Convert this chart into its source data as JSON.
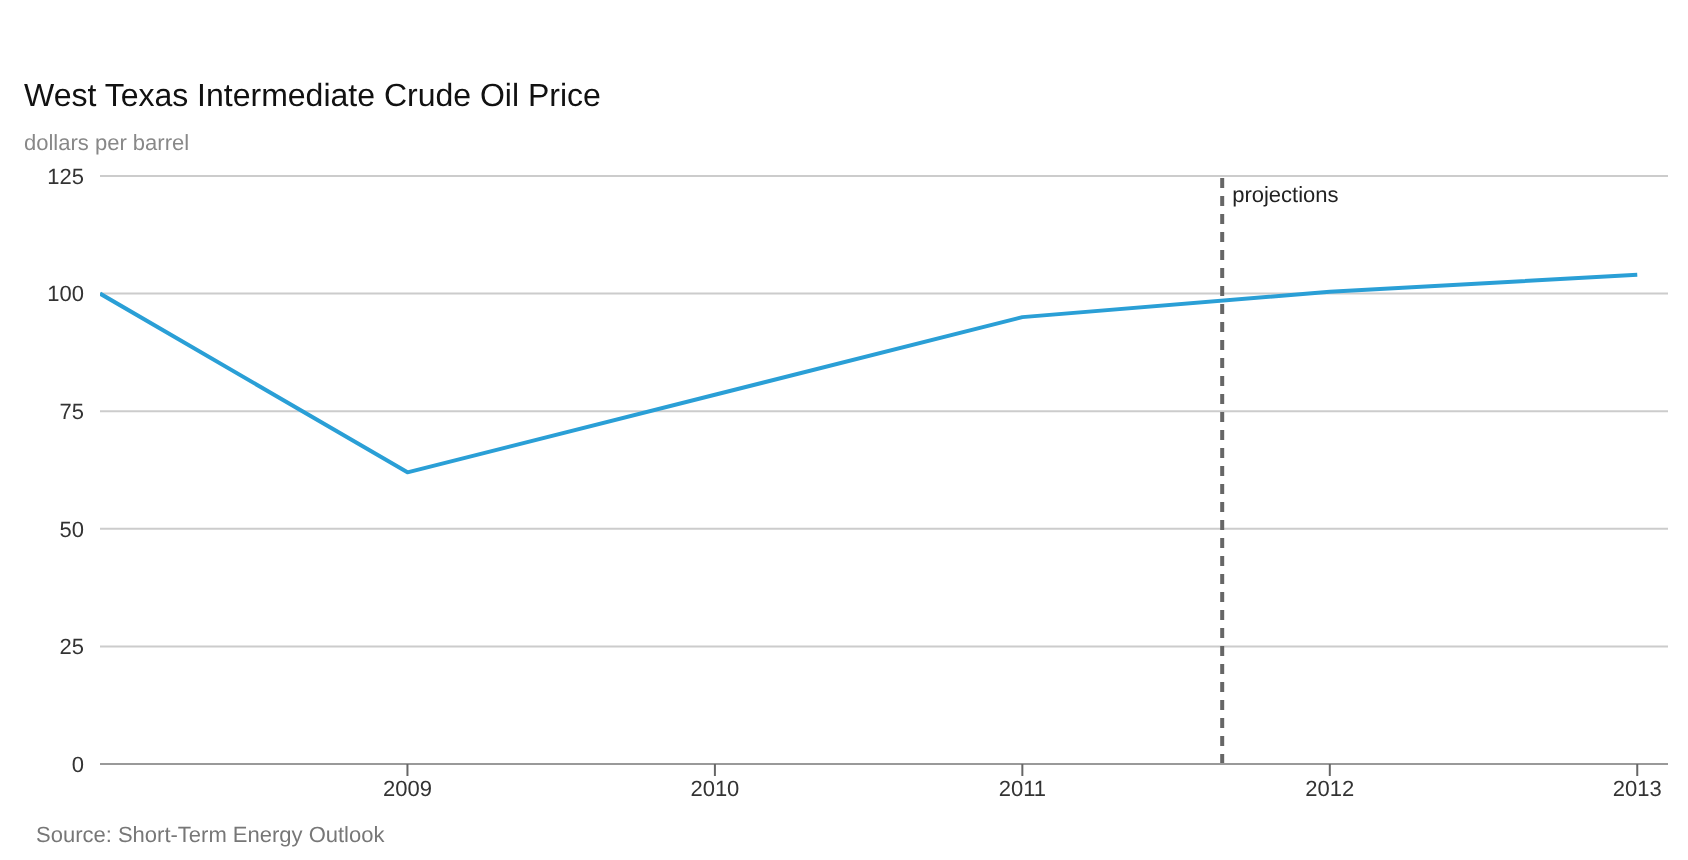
{
  "chart_data": {
    "type": "line",
    "title": "West Texas Intermediate Crude Oil Price",
    "ylabel": "dollars per barrel",
    "x": [
      2008,
      2009,
      2010,
      2011,
      2012,
      2013
    ],
    "series": [
      {
        "color": "#2a9fd6",
        "values": [
          100,
          62,
          78.5,
          95,
          100.4,
          104
        ]
      }
    ],
    "xlim": [
      2008,
      2013.1
    ],
    "xticks": [
      2009,
      2010,
      2011,
      2012,
      2013
    ],
    "ylim": [
      0,
      125
    ],
    "yticks": [
      0,
      25,
      50,
      75,
      100,
      125
    ],
    "grid": "y",
    "marker": "none",
    "line_style": "solid",
    "ref_lines": [
      {
        "axis": "x",
        "value": 2011.65,
        "label": "projections",
        "color": "#666666",
        "line_style": "dashed"
      }
    ],
    "annotations": [
      "Source: Short-Term Energy Outlook"
    ]
  }
}
